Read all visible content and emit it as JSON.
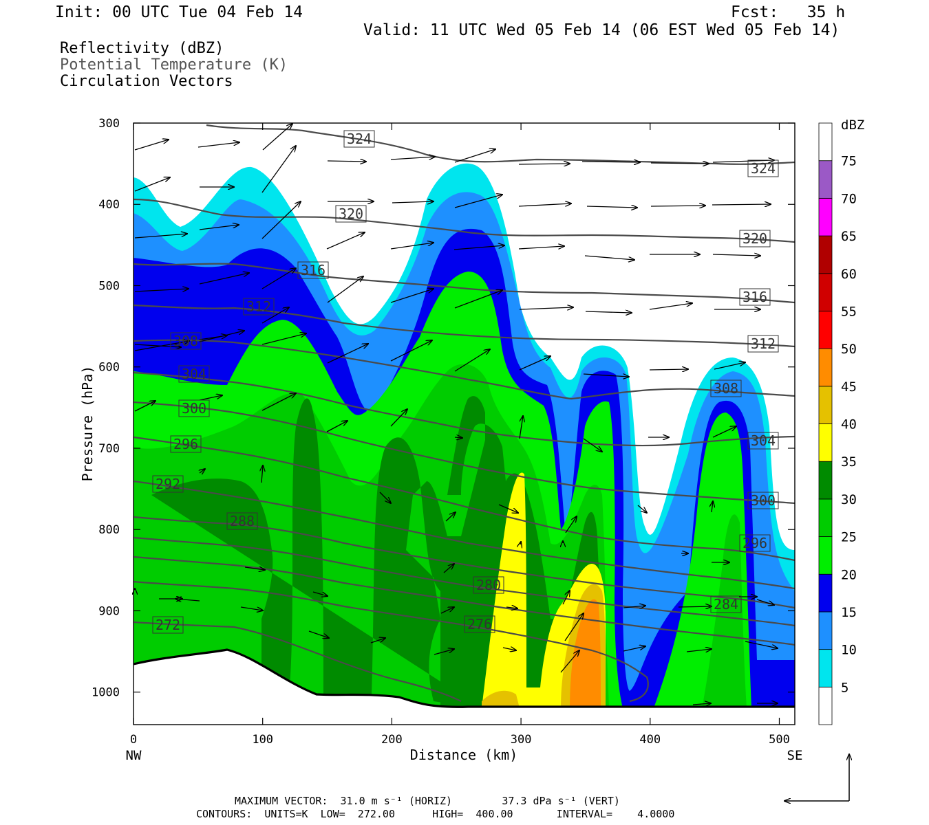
{
  "header": {
    "init": "Init: 00 UTC Tue 04 Feb 14",
    "fcst": "Fcst:   35 h",
    "valid": "Valid: 11 UTC Wed 05 Feb 14 (06 EST Wed 05 Feb 14)"
  },
  "legend_lines": {
    "reflectivity": "Reflectivity (dBZ)",
    "theta": "Potential Temperature (K)",
    "vectors": "Circulation Vectors"
  },
  "footer": {
    "max_vector_line": "MAXIMUM VECTOR:  31.0 m s⁻¹ (HORIZ)        37.3 dPa s⁻¹ (VERT)",
    "contours_line": "CONTOURS:  UNITS=K  LOW=  272.00      HIGH=  400.00       INTERVAL=    4.0000"
  },
  "colors": {
    "lt_cyan": "#00e5ee",
    "sky": "#1e90ff",
    "blue": "#0000ee",
    "lime": "#00ee00",
    "green": "#00cc00",
    "dkgreen": "#008b00",
    "yellow": "#ffff00",
    "gold": "#e5c100",
    "orange": "#ff8c00",
    "contour": "#4a4a4a"
  },
  "chart_data": {
    "type": "cross-section",
    "xlabel": "Distance (km)",
    "ylabel": "Pressure (hPa)",
    "xlim": [
      0,
      512
    ],
    "ylim": [
      1040,
      300
    ],
    "x_ticks": [
      "0",
      "100",
      "200",
      "300",
      "400",
      "500"
    ],
    "y_ticks": [
      "300",
      "400",
      "500",
      "600",
      "700",
      "800",
      "900",
      "1000"
    ],
    "x_end_labels": [
      "NW",
      "SE"
    ],
    "colorbar": {
      "unit": "dBZ",
      "levels": [
        "5",
        "10",
        "15",
        "20",
        "25",
        "30",
        "35",
        "40",
        "45",
        "50",
        "55",
        "60",
        "65",
        "70",
        "75"
      ],
      "colors": [
        "#ffffff",
        "#00e5ee",
        "#1e90ff",
        "#0000ee",
        "#00ee00",
        "#00cc00",
        "#008b00",
        "#ffff00",
        "#e5c100",
        "#ff8c00",
        "#ff0000",
        "#d00000",
        "#b00000",
        "#ff00ff",
        "#9b59c6",
        "#ffffff"
      ]
    },
    "theta_labels": [
      "324",
      "324",
      "320",
      "320",
      "316",
      "316",
      "312",
      "312",
      "308",
      "308",
      "304",
      "304",
      "300",
      "300",
      "296",
      "296",
      "292",
      "288",
      "284",
      "280",
      "276",
      "272"
    ]
  }
}
